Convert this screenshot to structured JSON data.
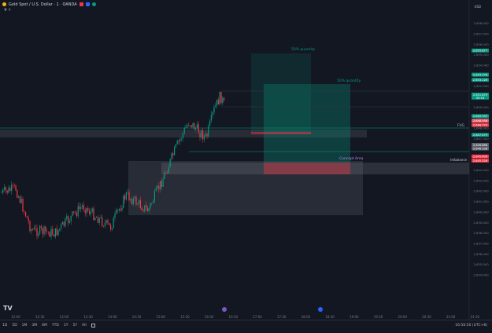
{
  "header": {
    "symbol": "Gold Spot / U.S. Dollar · 1 · OANDA",
    "sub": "▼ 4",
    "currency": "USD"
  },
  "y_axis": [
    {
      "p": 2658,
      "l": "2,658.000"
    },
    {
      "p": 2657,
      "l": "2,657.000"
    },
    {
      "p": 2656,
      "l": "2,656.000"
    },
    {
      "p": 2655,
      "l": "2,655.000"
    },
    {
      "p": 2654,
      "l": "2,654.000"
    },
    {
      "p": 2653,
      "l": "2,653.000"
    },
    {
      "p": 2652,
      "l": "2,652.000"
    },
    {
      "p": 2651,
      "l": "2,651.000"
    },
    {
      "p": 2650,
      "l": "2,650.000"
    },
    {
      "p": 2649,
      "l": "2,649.000"
    },
    {
      "p": 2648,
      "l": "2,648.000"
    },
    {
      "p": 2647,
      "l": "2,647.000"
    },
    {
      "p": 2646,
      "l": "2,646.000"
    },
    {
      "p": 2645,
      "l": "2,645.000"
    },
    {
      "p": 2644,
      "l": "2,644.000"
    },
    {
      "p": 2643,
      "l": "2,643.000"
    },
    {
      "p": 2642,
      "l": "2,642.000"
    },
    {
      "p": 2641,
      "l": "2,641.000"
    },
    {
      "p": 2640,
      "l": "2,640.000"
    },
    {
      "p": 2639,
      "l": "2,639.000"
    },
    {
      "p": 2638,
      "l": "2,638.000"
    },
    {
      "p": 2637,
      "l": "2,637.000"
    },
    {
      "p": 2636,
      "l": "2,636.000"
    },
    {
      "p": 2635,
      "l": "2,635.000"
    },
    {
      "p": 2634,
      "l": "2,634.000"
    }
  ],
  "price_tags": [
    {
      "p": 2655.4,
      "l": "2,655.877",
      "c": "#089981"
    },
    {
      "p": 2653.1,
      "l": "2,654.378",
      "c": "#089981"
    },
    {
      "p": 2652.6,
      "l": "2,653.126",
      "c": "#089981"
    },
    {
      "p": 2651.2,
      "l": "2,651.879",
      "c": "#089981"
    },
    {
      "p": 2650.9,
      "l": "00:18",
      "c": "#089981"
    },
    {
      "p": 2649.15,
      "l": "2,649.337",
      "c": "#089981"
    },
    {
      "p": 2648.7,
      "l": "2,648.056",
      "c": "#e15b6a"
    },
    {
      "p": 2648.3,
      "l": "2,648.770",
      "c": "#f23645"
    },
    {
      "p": 2647.35,
      "l": "2,647.479",
      "c": "#089981"
    },
    {
      "p": 2646.4,
      "l": "2,646.886",
      "c": "#5d606b"
    },
    {
      "p": 2646.05,
      "l": "2,646.338",
      "c": "#5d606b"
    },
    {
      "p": 2645.3,
      "l": "2,645.606",
      "c": "#f23645"
    },
    {
      "p": 2644.9,
      "l": "2,645.326",
      "c": "#f23645"
    }
  ],
  "x_axis": [
    "12:00",
    "12:30",
    "13:00",
    "13:30",
    "14:00",
    "14:30",
    "15:00",
    "15:30",
    "16:00",
    "16:30",
    "17:00",
    "17:30",
    "18:00",
    "18:30",
    "19:00",
    "19:30",
    "20:00",
    "20:30",
    "21:00",
    "21:30",
    "22:00"
  ],
  "annotations": {
    "q50_top": "50% quantity",
    "q50_mid": "50% quantity",
    "fvg": "FVG",
    "concept": "Concept Area",
    "imbalance": "Imbalance"
  },
  "timeframes": [
    "1D",
    "5D",
    "1M",
    "3M",
    "6M",
    "YTD",
    "1Y",
    "5Y",
    "All"
  ],
  "clock": "16:56:50 (UTC+8)",
  "logo": "TV",
  "colors": {
    "bg": "#131722",
    "up": "#089981",
    "down": "#f23645",
    "zone": "#787b86",
    "tp": "#089981",
    "sl": "#f23645"
  }
}
